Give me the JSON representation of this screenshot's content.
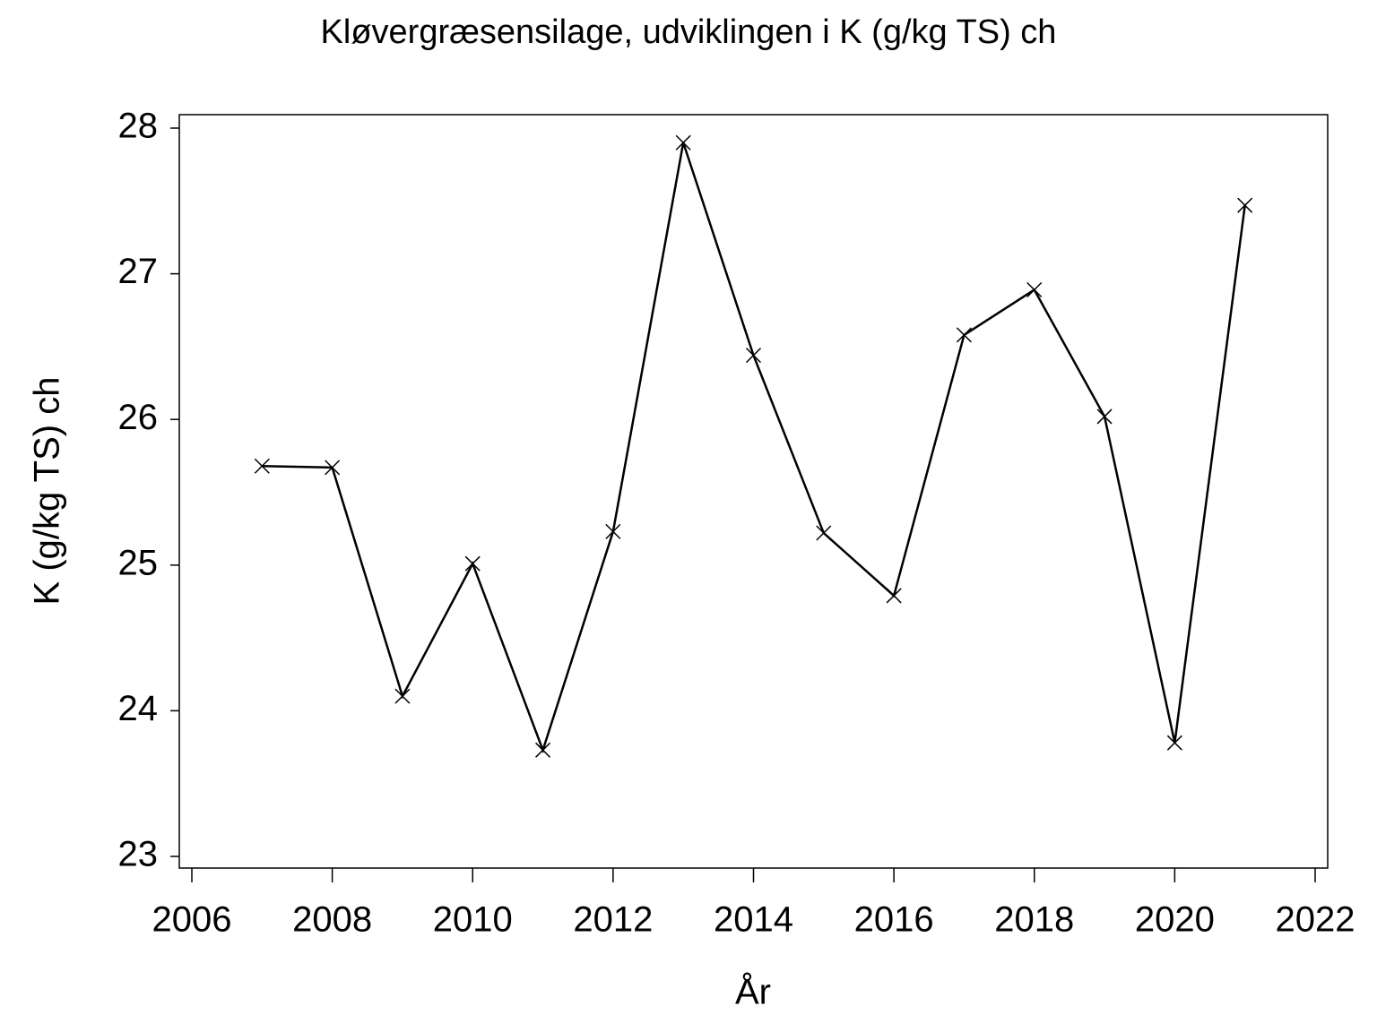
{
  "chart_data": {
    "type": "line",
    "title": "Kløvergræsensilage, udviklingen i K (g/kg TS) ch",
    "x_label": "År",
    "y_label": "K (g/kg TS) ch",
    "x": [
      2007,
      2008,
      2009,
      2010,
      2011,
      2012,
      2013,
      2014,
      2015,
      2016,
      2017,
      2018,
      2019,
      2020,
      2021
    ],
    "values": [
      25.68,
      25.67,
      24.1,
      25.01,
      23.73,
      25.23,
      27.9,
      26.44,
      25.22,
      24.79,
      26.58,
      26.89,
      26.02,
      23.78,
      27.47
    ],
    "color": "#000000",
    "xlim": [
      2006,
      2022
    ],
    "xticks": [
      2006,
      2008,
      2010,
      2012,
      2014,
      2016,
      2018,
      2020,
      2022
    ],
    "ylim": [
      23,
      28
    ],
    "yticks": [
      23,
      24,
      25,
      26,
      27,
      28
    ],
    "grid": false
  }
}
